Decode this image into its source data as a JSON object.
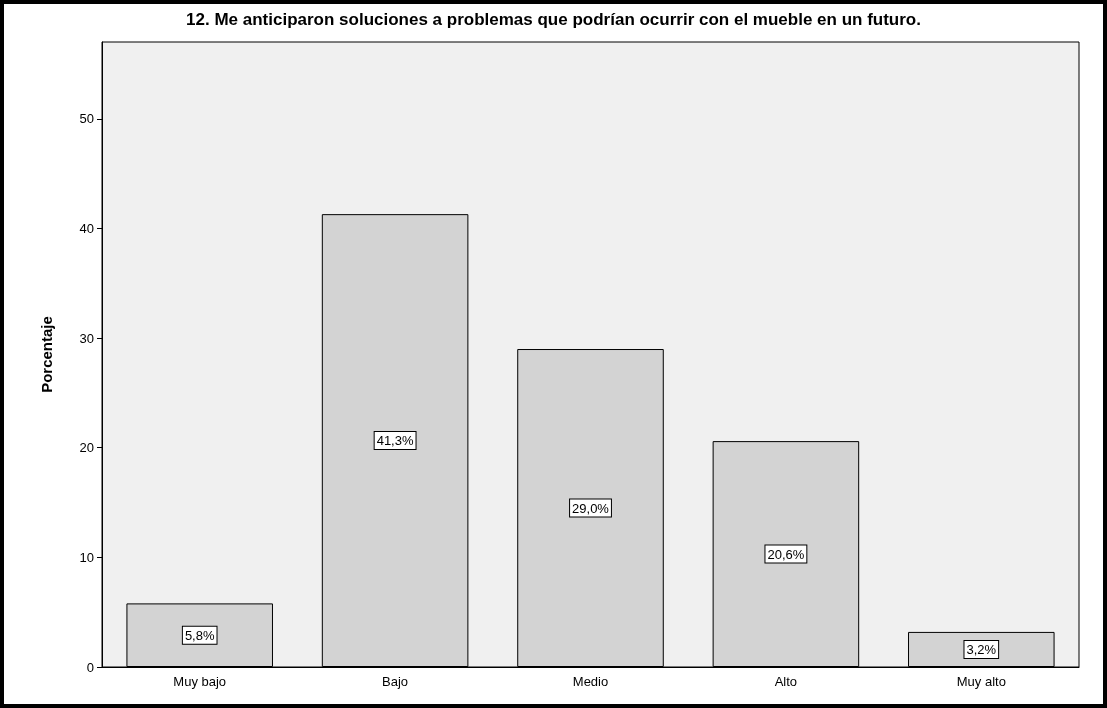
{
  "chart_data": {
    "type": "bar",
    "title": "12. Me anticiparon soluciones a problemas que podrían ocurrir con el mueble en un futuro.",
    "ylabel": "Porcentaje",
    "categories": [
      "Muy bajo",
      "Bajo",
      "Medio",
      "Alto",
      "Muy alto"
    ],
    "values": [
      5.8,
      41.3,
      29.0,
      20.6,
      3.2
    ],
    "value_labels": [
      "5,8%",
      "41,3%",
      "29,0%",
      "20,6%",
      "3,2%"
    ],
    "color": "#d3d3d3",
    "ylim": [
      0,
      57
    ],
    "yticks": [
      0,
      10,
      20,
      30,
      40,
      50
    ],
    "grid": false
  }
}
